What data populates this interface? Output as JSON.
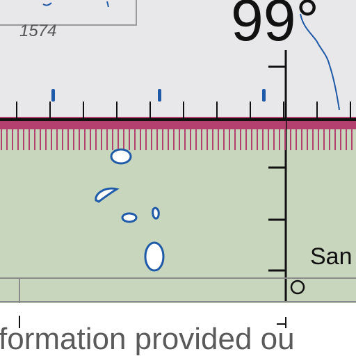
{
  "map": {
    "elevation_label": "1574",
    "degree_label": "99°",
    "place_label": "San",
    "footer_text": "formation provided ou"
  },
  "colors": {
    "upper_area": "#e8e8ea",
    "lower_area": "#c8d6bd",
    "boundary_band": "#b4406f",
    "water": "#1f5aa8",
    "ink": "#111111",
    "footer_bg": "#ffffff"
  }
}
